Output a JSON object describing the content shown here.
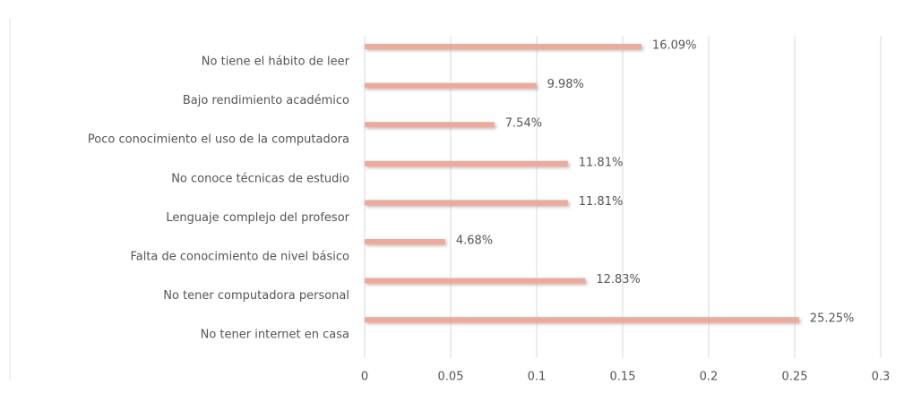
{
  "chart_data": {
    "type": "barh",
    "categories": [
      "No tiene el hábito de leer",
      "Bajo rendimiento académico",
      "Poco conocimiento el uso de la computadora",
      "No conoce técnicas de estudio",
      "Lenguaje complejo del profesor",
      "Falta de conocimiento de nivel básico",
      "No tener computadora personal",
      "No tener internet en casa"
    ],
    "values": [
      0.1609,
      0.0998,
      0.0754,
      0.1181,
      0.1181,
      0.0468,
      0.1283,
      0.2525
    ],
    "value_labels": [
      "16.09%",
      "9.98%",
      "7.54%",
      "11.81%",
      "11.81%",
      "4.68%",
      "12.83%",
      "25.25%"
    ],
    "color": "#f2a898",
    "xlim": [
      0,
      0.3
    ],
    "xticks": [
      0,
      0.05,
      0.1,
      0.15,
      0.2,
      0.25,
      0.3
    ],
    "grid": true
  }
}
